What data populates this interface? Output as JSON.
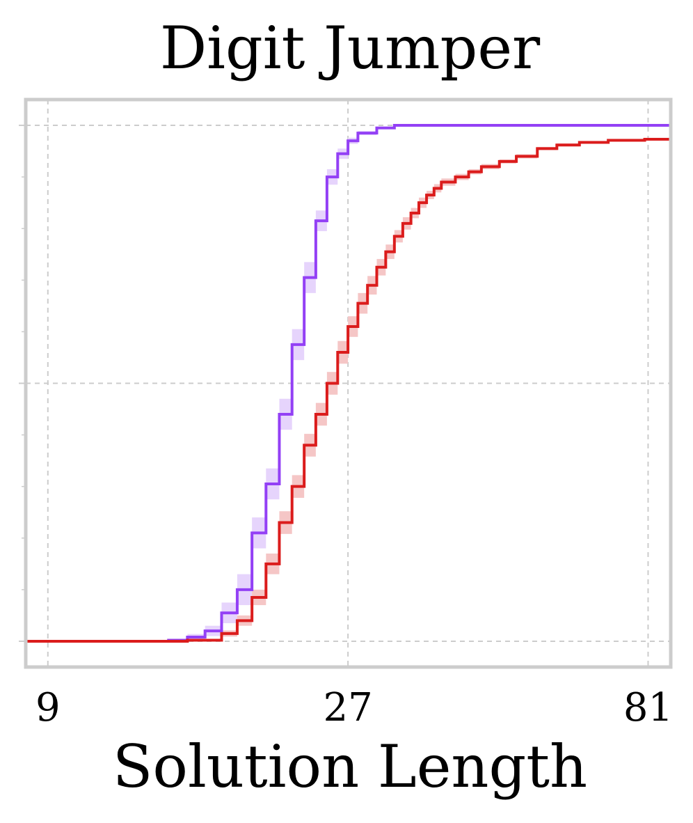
{
  "chart_data": {
    "type": "line",
    "title": "Digit Jumper",
    "xlabel": "Solution Length",
    "ylabel": "",
    "x_scale": "log",
    "xlim": [
      8.3,
      88
    ],
    "ylim": [
      -0.05,
      1.05
    ],
    "x_ticks": [
      9,
      27,
      81
    ],
    "x_tick_labels": [
      "9",
      "27",
      "81"
    ],
    "y_ticks": [
      0,
      0.5,
      1
    ],
    "y_tick_labels": [
      "",
      "",
      ""
    ],
    "y_minor_ticks": [
      0.1,
      0.2,
      0.3,
      0.4,
      0.6,
      0.7,
      0.8,
      0.9
    ],
    "grid": true,
    "legend": "none",
    "series": [
      {
        "color": "#9340f5",
        "band_color": "#e6d4fc",
        "step": true,
        "x": [
          8.3,
          14,
          15,
          16,
          17,
          18,
          19,
          20,
          21,
          22,
          23,
          24,
          25,
          26,
          27,
          28,
          30,
          32,
          88
        ],
        "y": [
          0,
          0.002,
          0.008,
          0.02,
          0.055,
          0.1,
          0.21,
          0.305,
          0.44,
          0.575,
          0.705,
          0.815,
          0.9,
          0.945,
          0.97,
          0.985,
          0.995,
          1.0,
          1.0
        ],
        "band": [
          0,
          0.002,
          0.006,
          0.01,
          0.02,
          0.03,
          0.03,
          0.03,
          0.03,
          0.03,
          0.03,
          0.02,
          0.015,
          0.01,
          0.006,
          0.004,
          0.002,
          0,
          0
        ]
      },
      {
        "color": "#db1c1c",
        "band_color": "#f5c6c6",
        "step": true,
        "x": [
          8.3,
          15,
          17,
          18,
          19,
          20,
          21,
          22,
          23,
          24,
          25,
          26,
          27,
          28,
          29,
          30,
          31,
          32,
          33,
          34,
          35,
          36,
          37,
          38,
          40,
          42,
          44,
          47,
          50,
          54,
          58,
          63,
          70,
          80,
          88
        ],
        "y": [
          0,
          0.002,
          0.015,
          0.04,
          0.085,
          0.15,
          0.23,
          0.3,
          0.38,
          0.44,
          0.5,
          0.56,
          0.61,
          0.655,
          0.69,
          0.725,
          0.755,
          0.785,
          0.81,
          0.83,
          0.85,
          0.865,
          0.878,
          0.89,
          0.9,
          0.91,
          0.92,
          0.93,
          0.94,
          0.955,
          0.962,
          0.967,
          0.971,
          0.973,
          0.974
        ],
        "band": [
          0,
          0.002,
          0.006,
          0.01,
          0.015,
          0.02,
          0.022,
          0.022,
          0.022,
          0.022,
          0.022,
          0.022,
          0.02,
          0.02,
          0.018,
          0.016,
          0.014,
          0.012,
          0.012,
          0.01,
          0.01,
          0.008,
          0.008,
          0.007,
          0.006,
          0.005,
          0.005,
          0.004,
          0.004,
          0.003,
          0.003,
          0.002,
          0.002,
          0.002,
          0.002
        ]
      }
    ]
  }
}
